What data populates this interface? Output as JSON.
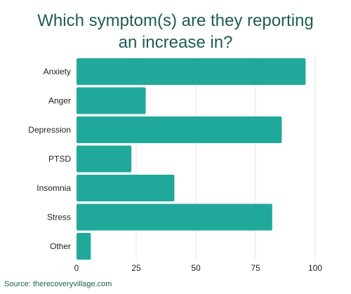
{
  "chart_data": {
    "type": "bar",
    "orientation": "horizontal",
    "title_lines": [
      "Which symptom(s) are they reporting",
      "an increase in?"
    ],
    "categories": [
      "Anxiety",
      "Anger",
      "Depression",
      "PTSD",
      "Insomnia",
      "Stress",
      "Other"
    ],
    "values": [
      96,
      29,
      86,
      23,
      41,
      82,
      6
    ],
    "xlim": [
      0,
      100
    ],
    "xticks": [
      0,
      25,
      50,
      75,
      100
    ],
    "xlabel": "",
    "ylabel": "",
    "grid": "vertical",
    "legend": "none",
    "bar_color": "#20a99a",
    "grid_color": "#e6e6e6"
  },
  "source": "Source: therecoveryvillage.com"
}
